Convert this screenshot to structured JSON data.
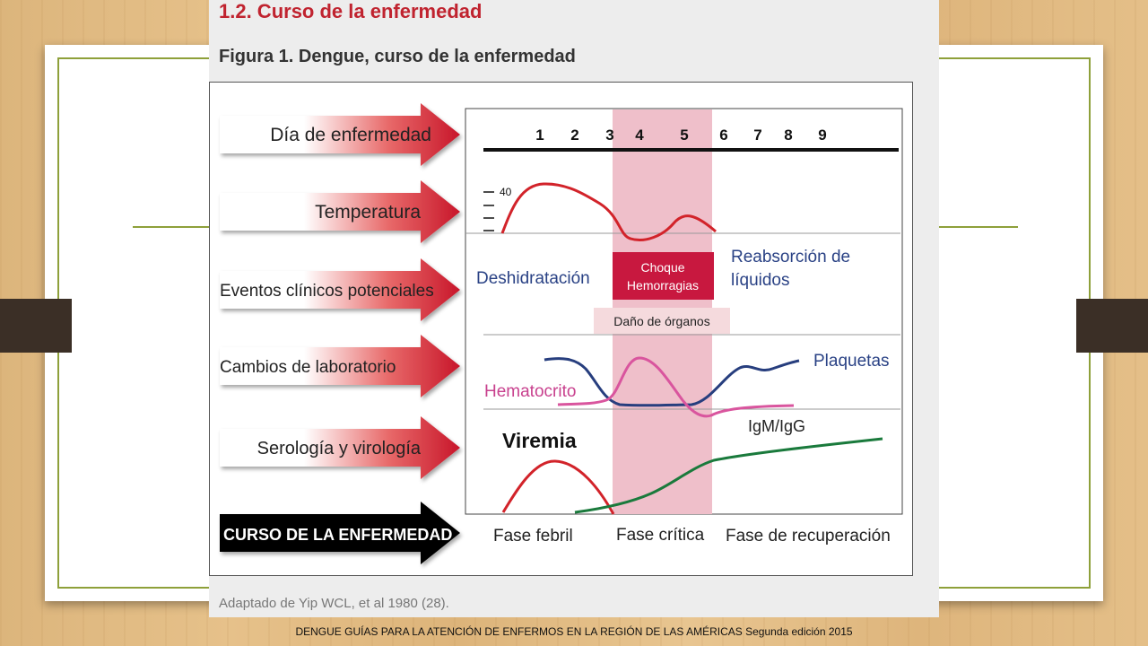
{
  "doc": {
    "section_title": "1.2.  Curso de la enfermedad",
    "figure_title": "Figura 1. Dengue, curso de la enfermedad",
    "caption": "Adaptado de Yip WCL, et al 1980 (28)."
  },
  "footer": "DENGUE GUÍAS PARA LA ATENCIÓN DE ENFERMOS EN LA REGIÓN DE LAS AMÉRICAS Segunda edición 2015",
  "diagram": {
    "row_labels": {
      "day": "Día de enfermedad",
      "temperature": "Temperatura",
      "events": "Eventos clínicos potenciales",
      "lab": "Cambios de laboratorio",
      "serology": "Serología y virología",
      "course": "CURSO DE LA ENFERMEDAD"
    },
    "days": [
      "1",
      "2",
      "3",
      "4",
      "5",
      "6",
      "7",
      "8",
      "9"
    ],
    "temp_tick": "40",
    "events": {
      "dehydration": "Deshidratación",
      "shock_line1": "Choque",
      "shock_line2": "Hemorragias",
      "reabsorption_line1": "Reabsorción de",
      "reabsorption_line2": "líquidos",
      "organ_damage": "Daño de órganos"
    },
    "lab": {
      "platelets": "Plaquetas",
      "hematocrit": "Hematocrito",
      "igm_igg": "IgM/IgG"
    },
    "serology": {
      "viremia": "Viremia"
    },
    "phases": {
      "febrile": "Fase febril",
      "critical": "Fase crítica",
      "recovery": "Fase de recuperación"
    },
    "colors": {
      "critical_band": "#efbfca",
      "shock_box": "#c8183f",
      "organ_box": "#f5dadd",
      "temp_curve": "#d2232a",
      "platelet_curve": "#273e7e",
      "hematocrit_curve": "#d9559e",
      "igm_curve": "#1a7a3c",
      "text_blue": "#2a4285",
      "text_pink": "#c8418e"
    }
  }
}
